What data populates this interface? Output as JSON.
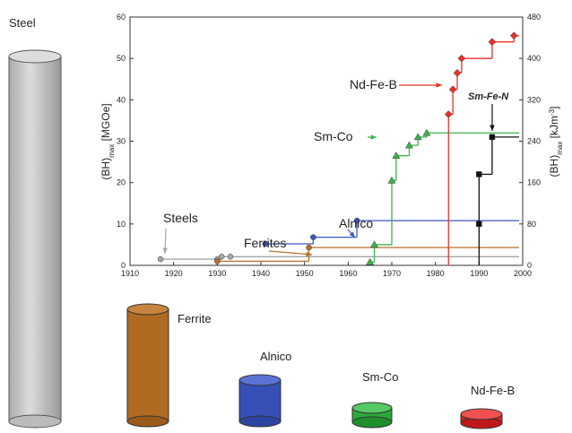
{
  "chart_data": {
    "type": "step",
    "y_label": [
      "(BH)",
      "max",
      " [MGOe]"
    ],
    "y2_label": [
      "(BH)",
      "max",
      " [kJm",
      "-3",
      "]"
    ],
    "xlim": [
      1910,
      2000
    ],
    "xticks": [
      1910,
      1920,
      1930,
      1940,
      1950,
      1960,
      1970,
      1980,
      1990,
      2000
    ],
    "ylim": [
      0,
      60
    ],
    "yticks": [
      0,
      10,
      20,
      30,
      40,
      50,
      60
    ],
    "y2lim": [
      0,
      480
    ],
    "y2ticks": [
      0,
      80,
      160,
      240,
      320,
      400,
      480
    ],
    "series": [
      {
        "name": "Steels",
        "color": "#a6a6a6",
        "marker": "circle",
        "x": [
          1917,
          1930,
          1931,
          1933
        ],
        "values": [
          1.5,
          1.5,
          2.1,
          2.1
        ]
      },
      {
        "name": "Ferrites",
        "color": "#b5702a",
        "marker": "circle",
        "x": [
          1930,
          1951
        ],
        "values": [
          1,
          4.3
        ]
      },
      {
        "name": "Alnico",
        "color": "#3d55c4",
        "marker": "circle",
        "x": [
          1941,
          1952,
          1962
        ],
        "values": [
          5.2,
          6.8,
          10.8
        ]
      },
      {
        "name": "Sm-Co",
        "color": "#3cb44b",
        "marker": "triangle",
        "x": [
          1965,
          1966,
          1970,
          1971,
          1974,
          1976,
          1978
        ],
        "values": [
          0.8,
          5,
          20.5,
          26.5,
          29,
          31,
          32
        ]
      },
      {
        "name": "Nd-Fe-B",
        "color": "#e63228",
        "marker": "diamond",
        "drop": true,
        "x": [
          1983,
          1984,
          1985,
          1986,
          1993,
          1998
        ],
        "values": [
          36.5,
          42.5,
          46.5,
          50,
          54,
          55.5
        ]
      },
      {
        "name": "Sm-Fe-N",
        "color": "#111111",
        "marker": "square",
        "drop": true,
        "x": [
          1990,
          1990,
          1993
        ],
        "values": [
          10,
          22,
          31
        ]
      }
    ]
  },
  "illustration": {
    "labels": [
      "Steel",
      "Ferrite",
      "Alnico",
      "Sm-Co",
      "Nd-Fe-B"
    ]
  }
}
